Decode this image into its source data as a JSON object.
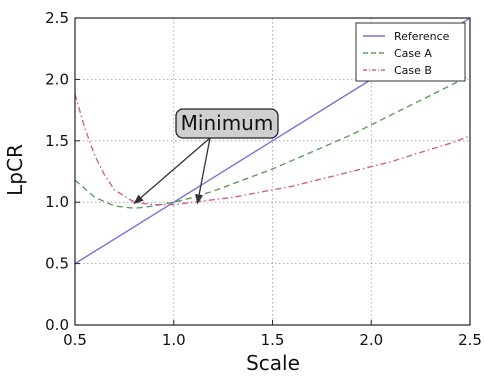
{
  "chart_data": {
    "type": "line",
    "xlabel": "Scale",
    "ylabel": "LpCR",
    "xlim": [
      0.5,
      2.5
    ],
    "ylim": [
      0.0,
      2.5
    ],
    "xticks": [
      "0.5",
      "1.0",
      "1.5",
      "2.0",
      "2.5"
    ],
    "yticks": [
      "0.0",
      "0.5",
      "1.0",
      "1.5",
      "2.0",
      "2.5"
    ],
    "grid": true,
    "legend_position": "top-right",
    "series": [
      {
        "name": "Reference",
        "color": "#7b6fd6",
        "style": "solid",
        "x": [
          0.5,
          1.0,
          1.5,
          2.0,
          2.5
        ],
        "y": [
          0.5,
          1.0,
          1.5,
          2.0,
          2.5
        ]
      },
      {
        "name": "Case A",
        "color": "#5aa05a",
        "style": "dashed",
        "x": [
          0.5,
          0.6,
          0.7,
          0.8,
          0.9,
          1.0,
          1.1,
          1.2,
          1.3,
          1.4,
          1.5,
          1.6,
          1.7,
          1.8,
          1.9,
          2.0,
          2.1,
          2.2,
          2.3,
          2.4,
          2.5
        ],
        "y": [
          1.18,
          1.04,
          0.97,
          0.95,
          0.97,
          1.0,
          1.04,
          1.09,
          1.15,
          1.21,
          1.27,
          1.34,
          1.41,
          1.48,
          1.55,
          1.63,
          1.71,
          1.79,
          1.87,
          1.95,
          2.03
        ]
      },
      {
        "name": "Case B",
        "color": "#d6608a",
        "style": "dashdot",
        "x": [
          0.5,
          0.55,
          0.6,
          0.65,
          0.7,
          0.8,
          0.9,
          1.0,
          1.1,
          1.2,
          1.3,
          1.4,
          1.5,
          1.6,
          1.7,
          1.8,
          1.9,
          2.0,
          2.1,
          2.2,
          2.3,
          2.4,
          2.5
        ],
        "y": [
          1.88,
          1.6,
          1.38,
          1.22,
          1.1,
          1.0,
          0.98,
          0.98,
          1.0,
          1.02,
          1.04,
          1.07,
          1.1,
          1.13,
          1.17,
          1.21,
          1.25,
          1.29,
          1.33,
          1.38,
          1.43,
          1.48,
          1.54
        ]
      }
    ],
    "annotations": [
      {
        "text": "Minimum",
        "points": [
          {
            "x": 0.8,
            "y": 0.99
          },
          {
            "x": 1.12,
            "y": 0.99
          }
        ]
      }
    ]
  }
}
